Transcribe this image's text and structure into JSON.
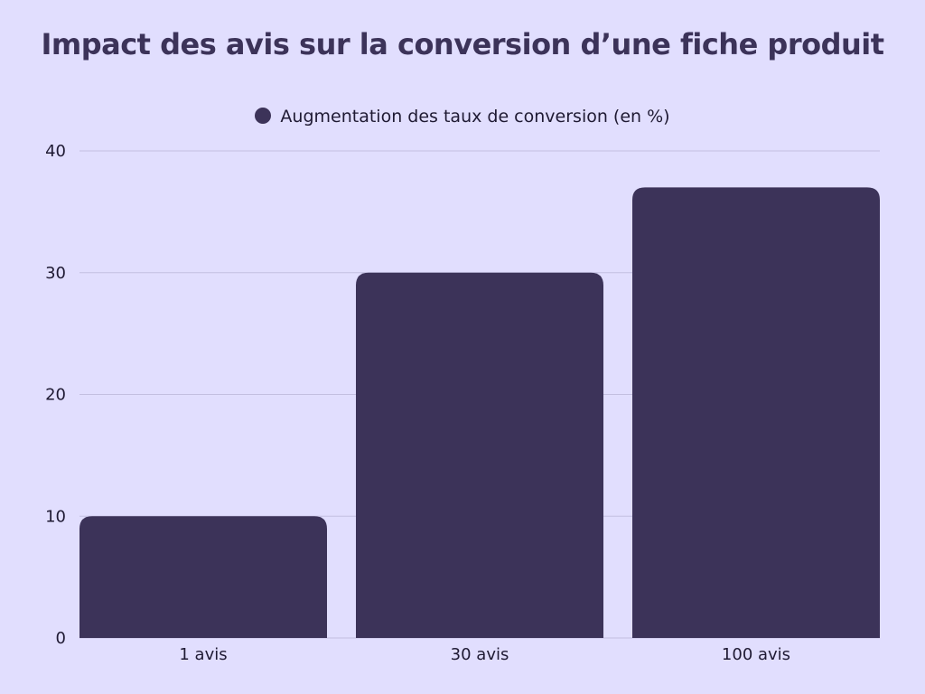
{
  "chart_data": {
    "type": "bar",
    "title": "Impact des avis sur la conversion d’une fiche produit",
    "categories": [
      "1 avis",
      "30 avis",
      "100 avis"
    ],
    "series": [
      {
        "name": "Augmentation des taux de conversion (en %)",
        "values": [
          10,
          30,
          37
        ]
      }
    ],
    "ylim": [
      0,
      40
    ],
    "yticks": [
      "0",
      "10",
      "20",
      "30",
      "40"
    ],
    "xlabel": "",
    "ylabel": "",
    "grid": true,
    "legend_position": "top-center"
  },
  "colors": {
    "background": "#e1defe",
    "bar": "#3c3359",
    "grid": "#c3bfe0",
    "text": "#1f1a33"
  }
}
